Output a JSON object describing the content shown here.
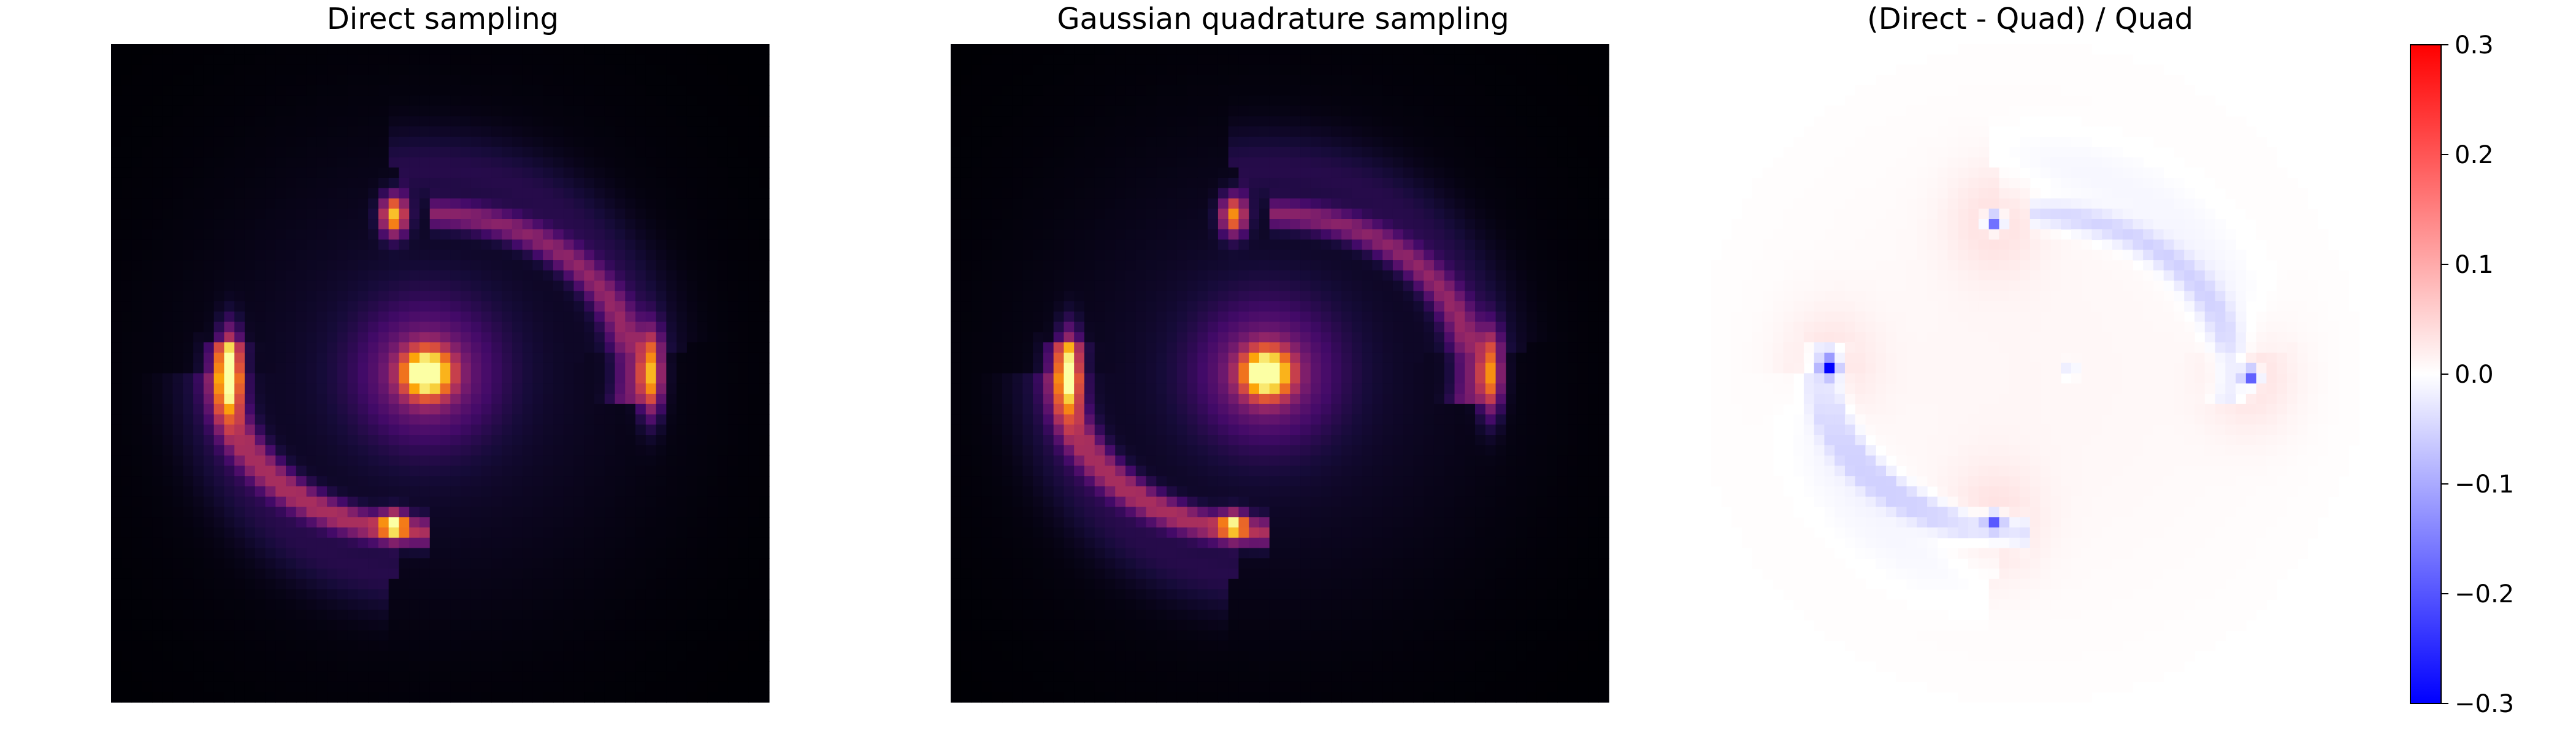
{
  "chart_data": [
    {
      "type": "heatmap",
      "title": "Direct sampling",
      "colormap": "inferno",
      "axes_visible": false,
      "grid": false,
      "features": [
        {
          "name": "center",
          "x": 0.48,
          "y": 0.5,
          "sx": 0.025,
          "sy": 0.025,
          "amp": 1.0
        },
        {
          "name": "center-halo",
          "x": 0.48,
          "y": 0.5,
          "sx": 0.07,
          "sy": 0.07,
          "amp": 0.25
        },
        {
          "name": "left-image",
          "x": 0.18,
          "y": 0.5,
          "sx": 0.012,
          "sy": 0.04,
          "amp": 0.95
        },
        {
          "name": "right-image",
          "x": 0.82,
          "y": 0.5,
          "sx": 0.012,
          "sy": 0.04,
          "amp": 0.75
        },
        {
          "name": "top-image",
          "x": 0.43,
          "y": 0.26,
          "sx": 0.013,
          "sy": 0.02,
          "amp": 0.8
        },
        {
          "name": "bottom-image",
          "x": 0.43,
          "y": 0.73,
          "sx": 0.013,
          "sy": 0.013,
          "amp": 0.8
        }
      ],
      "arc_brightness": 0.3,
      "diffuse_glow": 0.06
    },
    {
      "type": "heatmap",
      "title": "Gaussian quadrature sampling",
      "colormap": "inferno",
      "axes_visible": false,
      "grid": false,
      "features": [
        {
          "name": "center",
          "x": 0.48,
          "y": 0.5,
          "sx": 0.025,
          "sy": 0.025,
          "amp": 1.0
        },
        {
          "name": "center-halo",
          "x": 0.48,
          "y": 0.5,
          "sx": 0.07,
          "sy": 0.07,
          "amp": 0.25
        },
        {
          "name": "left-image",
          "x": 0.18,
          "y": 0.5,
          "sx": 0.012,
          "sy": 0.04,
          "amp": 0.78
        },
        {
          "name": "right-image",
          "x": 0.82,
          "y": 0.5,
          "sx": 0.012,
          "sy": 0.04,
          "amp": 0.65
        },
        {
          "name": "top-image",
          "x": 0.43,
          "y": 0.26,
          "sx": 0.013,
          "sy": 0.02,
          "amp": 0.68
        },
        {
          "name": "bottom-image",
          "x": 0.43,
          "y": 0.73,
          "sx": 0.013,
          "sy": 0.013,
          "amp": 0.68
        }
      ],
      "arc_brightness": 0.3,
      "diffuse_glow": 0.06
    },
    {
      "type": "heatmap",
      "title": "(Direct - Quad) / Quad",
      "colormap": "bwr",
      "axes_visible": false,
      "grid": false,
      "vmin": -0.3,
      "vmax": 0.3,
      "colorbar": {
        "ticks": [
          0.3,
          0.2,
          0.1,
          0.0,
          -0.1,
          -0.2,
          -0.3
        ],
        "tick_labels": [
          "0.3",
          "0.2",
          "0.1",
          "0.0",
          "−0.1",
          "−0.2",
          "−0.3"
        ]
      },
      "features": [
        {
          "name": "left-dip",
          "x": 0.18,
          "y": 0.49,
          "value": -0.3
        },
        {
          "name": "right-dip",
          "x": 0.82,
          "y": 0.505,
          "value": -0.22
        },
        {
          "name": "top-dip",
          "x": 0.43,
          "y": 0.27,
          "value": -0.22
        },
        {
          "name": "bottom-dip",
          "x": 0.43,
          "y": 0.725,
          "value": -0.18
        }
      ],
      "arc_residual": -0.06,
      "halo_residual": 0.03
    }
  ]
}
